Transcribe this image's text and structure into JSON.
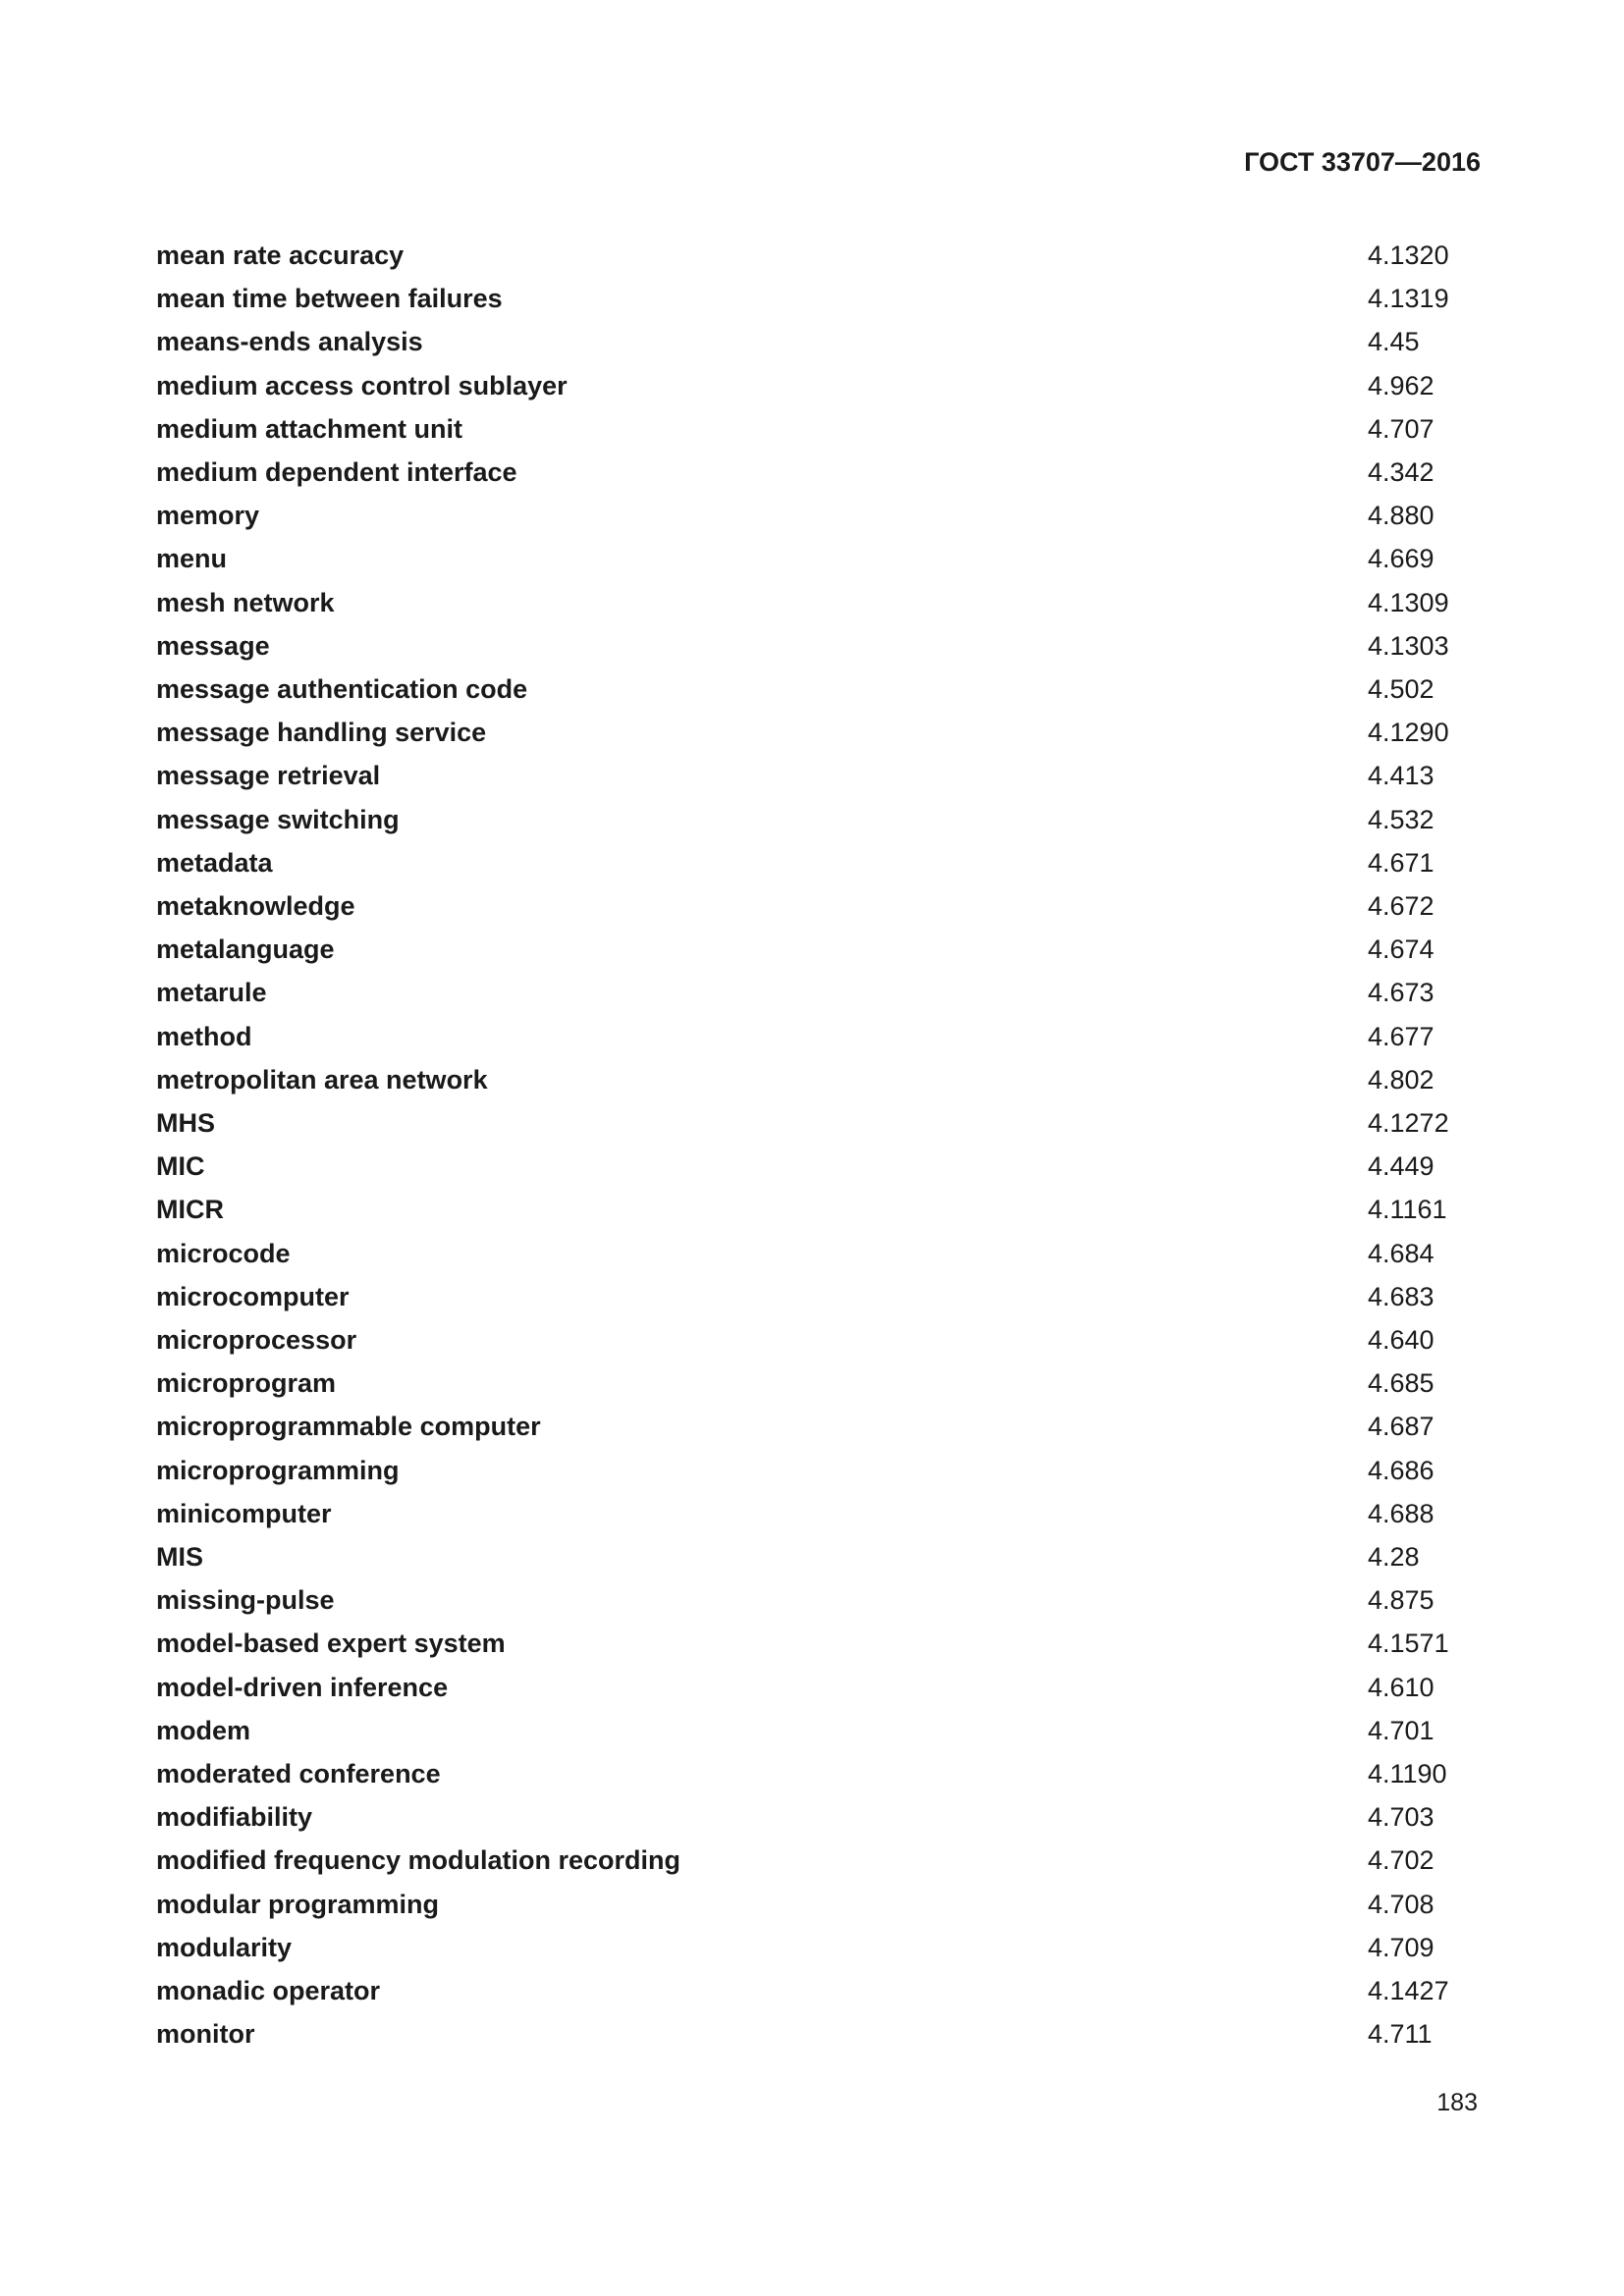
{
  "header": {
    "standard": "ГОСТ 33707—2016"
  },
  "entries": [
    {
      "term": "mean rate accuracy",
      "ref": "4.1320"
    },
    {
      "term": "mean time between failures",
      "ref": "4.1319"
    },
    {
      "term": "means-ends analysis",
      "ref": "4.45"
    },
    {
      "term": "medium access control sublayer",
      "ref": "4.962"
    },
    {
      "term": "medium attachment unit",
      "ref": "4.707"
    },
    {
      "term": "medium dependent interface",
      "ref": "4.342"
    },
    {
      "term": "memory",
      "ref": "4.880"
    },
    {
      "term": "menu",
      "ref": "4.669"
    },
    {
      "term": "mesh network",
      "ref": "4.1309"
    },
    {
      "term": "message",
      "ref": "4.1303"
    },
    {
      "term": "message authentication code",
      "ref": "4.502"
    },
    {
      "term": "message handling service",
      "ref": "4.1290"
    },
    {
      "term": "message retrieval",
      "ref": "4.413"
    },
    {
      "term": "message switching",
      "ref": "4.532"
    },
    {
      "term": "metadata",
      "ref": "4.671"
    },
    {
      "term": "metaknowledge",
      "ref": "4.672"
    },
    {
      "term": "metalanguage",
      "ref": "4.674"
    },
    {
      "term": "metarule",
      "ref": "4.673"
    },
    {
      "term": "method",
      "ref": "4.677"
    },
    {
      "term": "metropolitan area network",
      "ref": "4.802"
    },
    {
      "term": "MHS",
      "ref": "4.1272"
    },
    {
      "term": "MIC",
      "ref": "4.449"
    },
    {
      "term": "MICR",
      "ref": "4.1161"
    },
    {
      "term": "microcode",
      "ref": "4.684"
    },
    {
      "term": "microcomputer",
      "ref": "4.683"
    },
    {
      "term": "microprocessor",
      "ref": "4.640"
    },
    {
      "term": "microprogram",
      "ref": "4.685"
    },
    {
      "term": "microprogrammable computer",
      "ref": "4.687"
    },
    {
      "term": "microprogramming",
      "ref": "4.686"
    },
    {
      "term": "minicomputer",
      "ref": "4.688"
    },
    {
      "term": "MIS",
      "ref": "4.28"
    },
    {
      "term": "missing-pulse",
      "ref": "4.875"
    },
    {
      "term": "model-based expert system",
      "ref": "4.1571"
    },
    {
      "term": "model-driven inference",
      "ref": "4.610"
    },
    {
      "term": "modem",
      "ref": "4.701"
    },
    {
      "term": "moderated conference",
      "ref": "4.1190"
    },
    {
      "term": "modifiability",
      "ref": "4.703"
    },
    {
      "term": "modified frequency modulation recording",
      "ref": "4.702"
    },
    {
      "term": "modular programming",
      "ref": "4.708"
    },
    {
      "term": "modularity",
      "ref": "4.709"
    },
    {
      "term": "monadic operator",
      "ref": "4.1427"
    },
    {
      "term": "monitor",
      "ref": "4.711"
    }
  ],
  "footer": {
    "page_number": "183"
  }
}
